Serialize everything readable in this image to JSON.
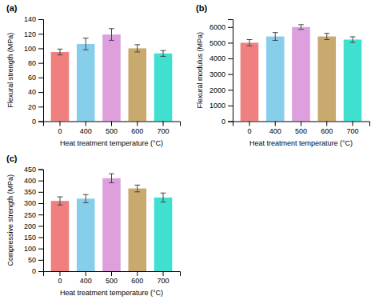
{
  "chart_data": [
    {
      "type": "bar",
      "title": "(a)",
      "categories": [
        "0",
        "400",
        "500",
        "600",
        "700"
      ],
      "values": [
        95,
        106,
        119,
        100,
        93
      ],
      "errors": [
        4,
        8,
        8,
        5,
        4
      ],
      "colors": [
        "#F08080",
        "#87CEEB",
        "#DDA0DD",
        "#C8A96E",
        "#40E0D0"
      ],
      "xlabel": "Heat treatment temperature (°C)",
      "ylabel": "Flexural strength (MPa)",
      "ylim": [
        0,
        140
      ],
      "yticks": [
        0,
        20,
        40,
        60,
        80,
        100,
        120,
        140
      ]
    },
    {
      "type": "bar",
      "title": "(b)",
      "categories": [
        "0",
        "400",
        "500",
        "600",
        "700"
      ],
      "values": [
        5000,
        5400,
        6000,
        5400,
        5200
      ],
      "errors": [
        200,
        250,
        150,
        200,
        180
      ],
      "colors": [
        "#F08080",
        "#87CEEB",
        "#DDA0DD",
        "#C8A96E",
        "#40E0D0"
      ],
      "xlabel": "Heat treatment temperature (°C)",
      "ylabel": "Flexural modulus (MPa)",
      "ylim": [
        0,
        6500
      ],
      "yticks": [
        0,
        1000,
        2000,
        3000,
        4000,
        5000,
        6000
      ]
    },
    {
      "type": "bar",
      "title": "(c)",
      "categories": [
        "0",
        "400",
        "500",
        "600",
        "700"
      ],
      "values": [
        310,
        320,
        410,
        365,
        325
      ],
      "errors": [
        18,
        18,
        20,
        15,
        20
      ],
      "colors": [
        "#F08080",
        "#87CEEB",
        "#DDA0DD",
        "#C8A96E",
        "#40E0D0"
      ],
      "xlabel": "Heat treatment temperature (°C)",
      "ylabel": "Compressive strength (MPa)",
      "ylim": [
        0,
        450
      ],
      "yticks": [
        0,
        50,
        100,
        150,
        200,
        250,
        300,
        350,
        400,
        450
      ]
    }
  ]
}
